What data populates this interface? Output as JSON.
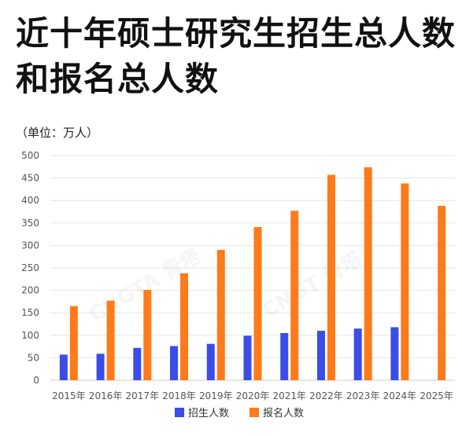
{
  "chart_data": {
    "type": "bar",
    "title": "近十年硕士研究生招生总人数和报名总人数",
    "unit_label": "（单位：万人）",
    "categories": [
      "2015年",
      "2016年",
      "2017年",
      "2018年",
      "2019年",
      "2020年",
      "2021年",
      "2022年",
      "2023年",
      "2024年",
      "2025年"
    ],
    "series": [
      {
        "name": "招生人数",
        "color": "#3b4de6",
        "values": [
          57,
          59,
          72,
          76,
          81,
          99,
          105,
          110,
          115,
          118,
          null
        ]
      },
      {
        "name": "报名人数",
        "color": "#ff7a1a",
        "values": [
          165,
          177,
          201,
          238,
          290,
          341,
          377,
          457,
          474,
          438,
          388
        ]
      }
    ],
    "ylim": [
      0,
      500
    ],
    "yticks": [
      0,
      50,
      100,
      150,
      200,
      250,
      300,
      350,
      400,
      450,
      500
    ],
    "grid": true,
    "legend_position": "bottom"
  },
  "watermarks": [
    "CNGTA 青塔",
    "CNGT 青塔"
  ]
}
